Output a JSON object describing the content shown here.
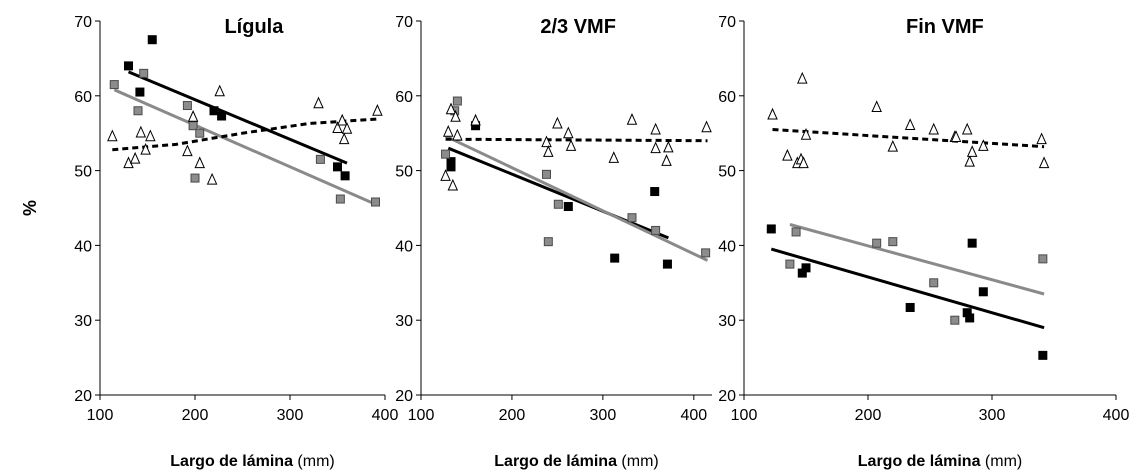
{
  "chart_data": [
    {
      "type": "scatter",
      "title": "Lígula",
      "xlabel": {
        "bold": "Largo de lámina",
        "normal": " (mm)"
      },
      "ylabel": "%",
      "xlim": [
        100,
        400
      ],
      "ylim": [
        20,
        70
      ],
      "xticks": [
        100,
        200,
        300,
        400
      ],
      "yticks": [
        20,
        30,
        40,
        50,
        60,
        70
      ],
      "series": [
        {
          "marker": "black-square",
          "points": [
            [
              130,
              64
            ],
            [
              142,
              60.5
            ],
            [
              155,
              67.5
            ],
            [
              220,
              58
            ],
            [
              228,
              57.3
            ],
            [
              350,
              50.5
            ],
            [
              358,
              49.3
            ]
          ],
          "trend": [
            [
              130,
              63.2
            ],
            [
              360,
              51
            ]
          ]
        },
        {
          "marker": "gray-square",
          "points": [
            [
              115,
              61.5
            ],
            [
              140,
              58
            ],
            [
              146,
              63
            ],
            [
              192,
              58.7
            ],
            [
              198,
              56
            ],
            [
              200,
              49
            ],
            [
              205,
              55
            ],
            [
              332,
              51.5
            ],
            [
              353,
              46.2
            ],
            [
              390,
              45.8
            ]
          ],
          "trend": [
            [
              115,
              60.8
            ],
            [
              390,
              45.5
            ]
          ]
        },
        {
          "marker": "open-triangle",
          "points": [
            [
              113,
              54.6
            ],
            [
              130,
              51
            ],
            [
              137,
              51.6
            ],
            [
              143,
              55.1
            ],
            [
              148,
              52.8
            ],
            [
              153,
              54.6
            ],
            [
              192,
              52.6
            ],
            [
              198,
              57.2
            ],
            [
              205,
              51
            ],
            [
              218,
              48.8
            ],
            [
              226,
              60.6
            ],
            [
              330,
              59
            ],
            [
              350,
              55.7
            ],
            [
              355,
              56.7
            ],
            [
              357,
              54.2
            ],
            [
              360,
              55.6
            ],
            [
              392,
              58
            ]
          ],
          "trend": [
            [
              113,
              52.8
            ],
            [
              180,
              53.5
            ],
            [
              250,
              55
            ],
            [
              320,
              56.3
            ],
            [
              392,
              56.9
            ]
          ]
        }
      ]
    },
    {
      "type": "scatter",
      "title": "2/3 VMF",
      "xlabel": {
        "bold": "Largo de lámina",
        "normal": " (mm)"
      },
      "xlim": [
        100,
        420
      ],
      "ylim": [
        20,
        70
      ],
      "xticks": [
        100,
        200,
        300,
        400
      ],
      "yticks": [
        20,
        30,
        40,
        50,
        60,
        70
      ],
      "series": [
        {
          "marker": "black-square",
          "points": [
            [
              133,
              51.2
            ],
            [
              133,
              50.5
            ],
            [
              160,
              56
            ],
            [
              262,
              45.2
            ],
            [
              313,
              38.3
            ],
            [
              357,
              47.2
            ],
            [
              371,
              37.5
            ]
          ],
          "trend": [
            [
              130,
              53
            ],
            [
              372,
              41
            ]
          ]
        },
        {
          "marker": "gray-square",
          "points": [
            [
              127,
              52.2
            ],
            [
              137,
              58
            ],
            [
              140,
              59.3
            ],
            [
              238,
              49.5
            ],
            [
              240,
              40.5
            ],
            [
              251,
              45.5
            ],
            [
              332,
              43.7
            ],
            [
              358,
              42
            ],
            [
              413,
              39
            ]
          ],
          "trend": [
            [
              127,
              54.6
            ],
            [
              415,
              38
            ]
          ]
        },
        {
          "marker": "open-triangle",
          "points": [
            [
              127,
              49.3
            ],
            [
              130,
              55.2
            ],
            [
              133,
              58.2
            ],
            [
              135,
              48
            ],
            [
              138,
              57.2
            ],
            [
              140,
              54.7
            ],
            [
              160,
              56.7
            ],
            [
              238,
              53.8
            ],
            [
              240,
              52.5
            ],
            [
              250,
              56.3
            ],
            [
              262,
              55
            ],
            [
              265,
              53.3
            ],
            [
              312,
              51.7
            ],
            [
              332,
              56.8
            ],
            [
              358,
              55.5
            ],
            [
              358,
              53
            ],
            [
              370,
              51.3
            ],
            [
              372,
              53.1
            ],
            [
              414,
              55.8
            ]
          ],
          "trend": [
            [
              127,
              54.2
            ],
            [
              415,
              54
            ]
          ]
        }
      ]
    },
    {
      "type": "scatter",
      "title": "Fin VMF",
      "xlabel": {
        "bold": "Largo de lámina",
        "normal": " (mm)"
      },
      "xlim": [
        100,
        400
      ],
      "ylim": [
        20,
        70
      ],
      "xticks": [
        100,
        200,
        300,
        400
      ],
      "yticks": [
        20,
        30,
        40,
        50,
        60,
        70
      ],
      "series": [
        {
          "marker": "black-square",
          "points": [
            [
              122,
              42.2
            ],
            [
              147,
              36.3
            ],
            [
              150,
              37
            ],
            [
              234,
              31.7
            ],
            [
              280,
              31
            ],
            [
              282,
              30.3
            ],
            [
              284,
              40.3
            ],
            [
              293,
              33.8
            ],
            [
              341,
              25.3
            ]
          ],
          "trend": [
            [
              122,
              39.5
            ],
            [
              342,
              29
            ]
          ]
        },
        {
          "marker": "gray-square",
          "points": [
            [
              137,
              37.5
            ],
            [
              142,
              41.8
            ],
            [
              207,
              40.3
            ],
            [
              220,
              40.5
            ],
            [
              253,
              35
            ],
            [
              270,
              30
            ],
            [
              341,
              38.2
            ]
          ],
          "trend": [
            [
              137,
              42.8
            ],
            [
              342,
              33.5
            ]
          ]
        },
        {
          "marker": "open-triangle",
          "points": [
            [
              123,
              57.5
            ],
            [
              135,
              52
            ],
            [
              143,
              51
            ],
            [
              146,
              51.5
            ],
            [
              147,
              62.3
            ],
            [
              148,
              51
            ],
            [
              150,
              54.8
            ],
            [
              207,
              58.5
            ],
            [
              220,
              53.2
            ],
            [
              234,
              56.1
            ],
            [
              253,
              55.5
            ],
            [
              270,
              54.5
            ],
            [
              271,
              54.5
            ],
            [
              280,
              55.5
            ],
            [
              282,
              51.2
            ],
            [
              284,
              52.5
            ],
            [
              293,
              53.3
            ],
            [
              340,
              54.2
            ],
            [
              342,
              51
            ]
          ],
          "trend": [
            [
              123,
              55.5
            ],
            [
              342,
              53.2
            ]
          ]
        }
      ]
    }
  ]
}
